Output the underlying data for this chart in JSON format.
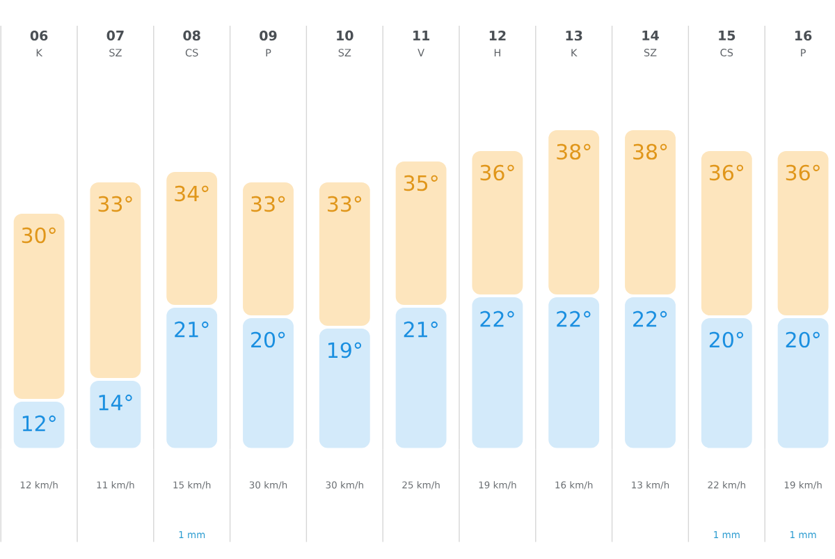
{
  "chart_data": [
    {
      "type": "bar",
      "stacked": true,
      "categories": [
        "**06** K",
        "**07** SZ",
        "**08** CS",
        "**09** P",
        "**10** SZ",
        "**11** V",
        "**12** H",
        "**13** K",
        "**14** SZ",
        "**15** CS",
        "**16** P"
      ],
      "series": [
        {
          "color": "#d3eafa",
          "values": [
            12,
            14,
            21,
            20,
            19,
            21,
            22,
            22,
            22,
            20,
            20
          ],
          "value_labels": [
            "12°",
            "14°",
            "21°",
            "20°",
            "19°",
            "21°",
            "22°",
            "22°",
            "22°",
            "20°",
            "20°"
          ]
        },
        {
          "color": "#fde5bd",
          "values": [
            18,
            19,
            13,
            13,
            14,
            14,
            14,
            16,
            16,
            16,
            16
          ]
        }
      ],
      "totals": [
        "30°",
        "33°",
        "34°",
        "33°",
        "33°",
        "35°",
        "36°",
        "38°",
        "38°",
        "36°",
        "36°"
      ],
      "ylim": [
        7.3,
        39
      ],
      "grid": "x",
      "tick_labels": "x"
    },
    {
      "type": "other",
      "categories": [
        "12 km/h",
        "11 km/h",
        "15 km/h",
        "30 km/h",
        "30 km/h",
        "25 km/h",
        "19 km/h",
        "16 km/h",
        "13 km/h",
        "22 km/h",
        "19 km/h"
      ]
    },
    {
      "type": "other",
      "categories": [
        null,
        null,
        "1 mm",
        null,
        null,
        null,
        null,
        null,
        null,
        "1 mm",
        "1 mm"
      ]
    }
  ]
}
